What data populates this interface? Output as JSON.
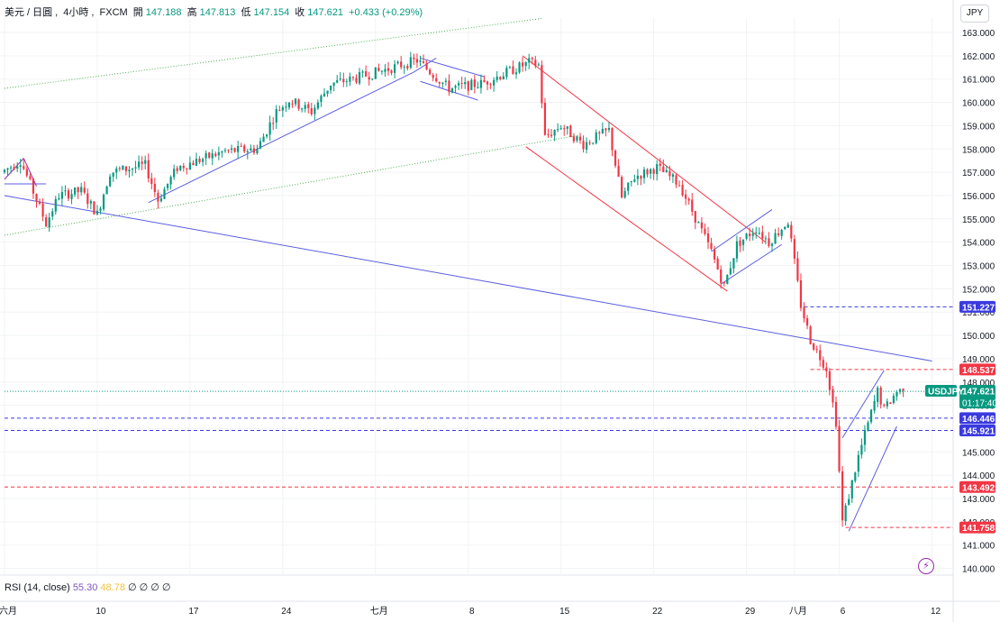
{
  "header": {
    "pair": "美元 / 日圓",
    "interval": "4小時",
    "exchange": "FXCM",
    "open_label": "開",
    "open_value": "147.188",
    "high_label": "高",
    "high_value": "147.813",
    "low_label": "低",
    "low_value": "147.154",
    "close_label": "收",
    "close_value": "147.621",
    "change": "+0.433 (+0.29%)"
  },
  "currency_button": "JPY",
  "rsi": {
    "label": "RSI (14, close)",
    "value1": "55.30",
    "value2": "48.78",
    "extra": "∅ ∅ ∅ ∅"
  },
  "colors": {
    "up": "#089981",
    "down": "#f23645",
    "trend": "#5b5fe0",
    "channel": "#f23645",
    "dotted": "#4caf50",
    "accent": "#2962ff"
  },
  "icons": {
    "alert": "lightning-icon"
  },
  "chart_data": {
    "type": "candlestick",
    "y_ticks": [
      140,
      141,
      142,
      143,
      144,
      145,
      146,
      147,
      148,
      149,
      150,
      151,
      152,
      153,
      154,
      155,
      156,
      157,
      158,
      159,
      160,
      161,
      162,
      163
    ],
    "y_tick_labels": [
      "140.000",
      "141.000",
      "142.000",
      "143.000",
      "144.000",
      "145.000",
      "146.000",
      "147.000",
      "148.000",
      "149.000",
      "150.000",
      "151.000",
      "152.000",
      "153.000",
      "154.000",
      "155.000",
      "156.000",
      "157.000",
      "158.000",
      "159.000",
      "160.000",
      "161.000",
      "162.000",
      "163.000"
    ],
    "ylim": [
      139.7,
      163.6
    ],
    "x_tick_labels": [
      "六月",
      "10",
      "17",
      "24",
      "七月",
      "8",
      "15",
      "22",
      "29",
      "八月",
      "6",
      "12"
    ],
    "x_tick_index": [
      0,
      29,
      58,
      87,
      116,
      145,
      174,
      203,
      232,
      247,
      261,
      290
    ],
    "bar_count": 282,
    "path_points": [
      [
        0,
        157.0
      ],
      [
        6,
        157.5
      ],
      [
        9,
        156.5
      ],
      [
        14,
        154.8
      ],
      [
        18,
        156.0
      ],
      [
        25,
        156.2
      ],
      [
        30,
        155.2
      ],
      [
        34,
        157.0
      ],
      [
        45,
        157.3
      ],
      [
        49,
        155.8
      ],
      [
        55,
        157.2
      ],
      [
        70,
        157.9
      ],
      [
        80,
        158.0
      ],
      [
        86,
        159.6
      ],
      [
        90,
        160.1
      ],
      [
        97,
        159.6
      ],
      [
        103,
        160.8
      ],
      [
        110,
        161.0
      ],
      [
        125,
        161.6
      ],
      [
        130,
        161.8
      ],
      [
        140,
        160.6
      ],
      [
        150,
        160.8
      ],
      [
        165,
        161.7
      ],
      [
        168,
        161.6
      ],
      [
        170,
        158.5
      ],
      [
        175,
        159.0
      ],
      [
        182,
        158.2
      ],
      [
        190,
        158.8
      ],
      [
        194,
        155.9
      ],
      [
        198,
        156.8
      ],
      [
        205,
        157.2
      ],
      [
        212,
        156.5
      ],
      [
        222,
        153.6
      ],
      [
        226,
        152.1
      ],
      [
        230,
        153.9
      ],
      [
        236,
        154.6
      ],
      [
        240,
        154.0
      ],
      [
        246,
        154.9
      ],
      [
        250,
        151.3
      ],
      [
        253,
        149.8
      ],
      [
        258,
        148.6
      ],
      [
        261,
        146.3
      ],
      [
        263,
        142.0
      ],
      [
        268,
        144.8
      ],
      [
        274,
        147.6
      ],
      [
        276,
        146.8
      ],
      [
        280,
        147.6
      ],
      [
        281,
        147.62
      ]
    ],
    "price_labels": [
      {
        "value": "151.227",
        "color": "#3a3ae0"
      },
      {
        "value": "148.537",
        "color": "#f23645"
      },
      {
        "value": "147.621",
        "color": "#089981"
      },
      {
        "value": "146.446",
        "color": "#3a3ae0"
      },
      {
        "value": "145.921",
        "color": "#3a3ae0"
      },
      {
        "value": "143.492",
        "color": "#f23645"
      },
      {
        "value": "141.758",
        "color": "#f23645"
      }
    ],
    "current_price": 147.621,
    "symbol_label": "USDJPY",
    "countdown": "01:17:40",
    "horizontal_levels": [
      {
        "price": 151.227,
        "color": "#3a3ae0",
        "from_index": 250
      },
      {
        "price": 148.537,
        "color": "#f23645",
        "from_index": 252
      },
      {
        "price": 146.446,
        "color": "#3a3ae0",
        "from_index": 0
      },
      {
        "price": 145.921,
        "color": "#3a3ae0",
        "from_index": 0
      },
      {
        "price": 143.492,
        "color": "#f23645",
        "from_index": 0
      },
      {
        "price": 141.758,
        "color": "#f23645",
        "from_index": 263
      }
    ],
    "trend_lines": [
      {
        "from": [
          0,
          156.0
        ],
        "to": [
          290,
          148.9
        ],
        "color": "#5b5fe0"
      },
      {
        "from": [
          45,
          155.7
        ],
        "to": [
          128,
          161.3
        ],
        "color": "#5b5fe0"
      },
      {
        "from": [
          128,
          161.3
        ],
        "to": [
          135,
          161.9
        ],
        "color": "#5b5fe0"
      },
      {
        "from": [
          130,
          161.9
        ],
        "to": [
          150,
          161.1
        ],
        "color": "#5b5fe0"
      },
      {
        "from": [
          130,
          160.9
        ],
        "to": [
          148,
          160.1
        ],
        "color": "#5b5fe0"
      },
      {
        "from": [
          221,
          153.6
        ],
        "to": [
          240,
          155.4
        ],
        "color": "#5b5fe0"
      },
      {
        "from": [
          224,
          152.2
        ],
        "to": [
          243,
          153.9
        ],
        "color": "#5b5fe0"
      },
      {
        "from": [
          264,
          141.6
        ],
        "to": [
          279,
          146.1
        ],
        "color": "#5b5fe0"
      },
      {
        "from": [
          262,
          145.6
        ],
        "to": [
          275,
          148.5
        ],
        "color": "#5b5fe0"
      },
      {
        "from": [
          0,
          156.7
        ],
        "to": [
          6,
          157.6
        ],
        "color": "#9c27b0"
      },
      {
        "from": [
          6,
          157.6
        ],
        "to": [
          10,
          156.4
        ],
        "color": "#9c27b0"
      },
      {
        "from": [
          0,
          156.5
        ],
        "to": [
          13,
          156.5
        ],
        "color": "#5b5fe0"
      }
    ],
    "channel_lines": [
      {
        "from": [
          162,
          162.0
        ],
        "to": [
          238,
          154.0
        ],
        "color": "#f23645"
      },
      {
        "from": [
          163,
          158.1
        ],
        "to": [
          226,
          151.9
        ],
        "color": "#f23645"
      }
    ],
    "dotted_lines": [
      {
        "from": [
          0,
          160.6
        ],
        "to": [
          168,
          163.6
        ],
        "color": "#4caf50"
      },
      {
        "from": [
          0,
          154.3
        ],
        "to": [
          180,
          158.6
        ],
        "color": "#4caf50"
      },
      {
        "from": [
          0,
          147.6
        ],
        "to": [
          290,
          147.6
        ],
        "color": "#089981"
      }
    ]
  }
}
